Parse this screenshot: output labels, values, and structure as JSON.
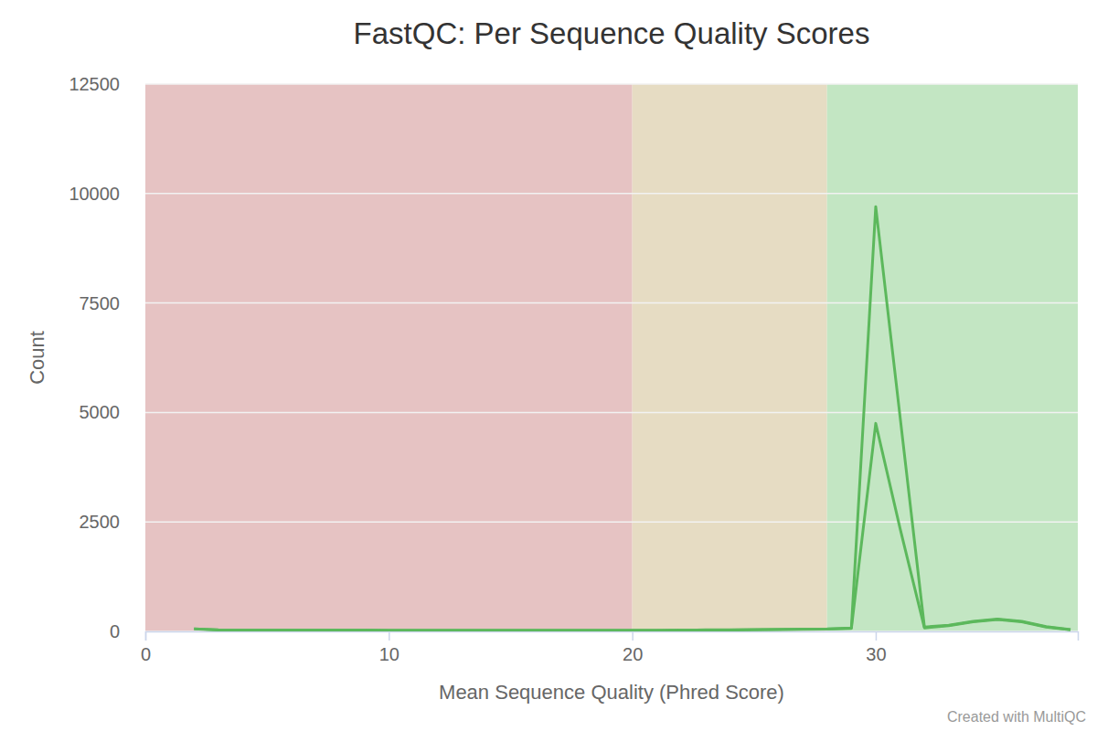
{
  "chart_data": {
    "type": "line",
    "title": "FastQC: Per Sequence Quality Scores",
    "x_label": "Mean Sequence Quality (Phred Score)",
    "y_label": "Count",
    "annotations": [
      "Created with MultiQC"
    ],
    "x": [
      2,
      3,
      4,
      5,
      6,
      7,
      8,
      9,
      10,
      11,
      12,
      13,
      14,
      15,
      16,
      17,
      18,
      19,
      20,
      21,
      22,
      23,
      24,
      25,
      26,
      27,
      28,
      29,
      30,
      31,
      32,
      33,
      34,
      35,
      36,
      37,
      38
    ],
    "series": [
      {
        "color": "#5cb85c",
        "values": [
          60,
          35,
          30,
          30,
          30,
          30,
          30,
          30,
          25,
          25,
          25,
          25,
          25,
          25,
          25,
          25,
          25,
          25,
          25,
          25,
          30,
          35,
          35,
          40,
          45,
          50,
          55,
          80,
          9700,
          4900,
          100,
          140,
          230,
          280,
          230,
          110,
          40
        ]
      },
      {
        "color": "#5cb85c",
        "values": [
          55,
          30,
          25,
          25,
          25,
          25,
          25,
          25,
          20,
          20,
          20,
          20,
          20,
          20,
          20,
          20,
          20,
          20,
          20,
          20,
          25,
          30,
          30,
          35,
          40,
          45,
          50,
          70,
          4750,
          2350,
          80,
          130,
          220,
          270,
          220,
          100,
          35
        ]
      }
    ],
    "bands": [
      {
        "from": 0,
        "to": 20,
        "color": "#e6c3c3"
      },
      {
        "from": 20,
        "to": 28,
        "color": "#e6dcc3"
      },
      {
        "from": 28,
        "to": 38.3,
        "color": "#c3e6c3"
      }
    ],
    "xlim": [
      0,
      38.3
    ],
    "xticks": [
      0,
      10,
      20,
      30
    ],
    "ylim": [
      0,
      12500
    ],
    "yticks": [
      0,
      2500,
      5000,
      7500,
      10000,
      12500
    ],
    "grid": true
  }
}
